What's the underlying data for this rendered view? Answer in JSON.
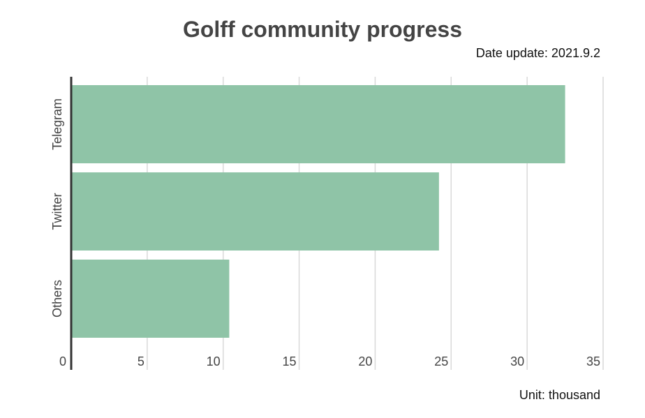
{
  "chart_data": {
    "type": "bar",
    "orientation": "horizontal",
    "title": "Golff community progress",
    "subtitle": "Date update: 2021.9.2",
    "unit_note": "Unit: thousand",
    "categories": [
      "Telegram",
      "Twitter",
      "Others"
    ],
    "values": [
      32.5,
      24.2,
      10.4
    ],
    "xlim": [
      0,
      35
    ],
    "x_ticks": [
      0,
      5,
      10,
      15,
      20,
      25,
      30,
      35
    ],
    "grid": true,
    "bar_color": "#8fc4a7",
    "grid_color": "#d9d9d9",
    "axis_color": "#333333"
  }
}
